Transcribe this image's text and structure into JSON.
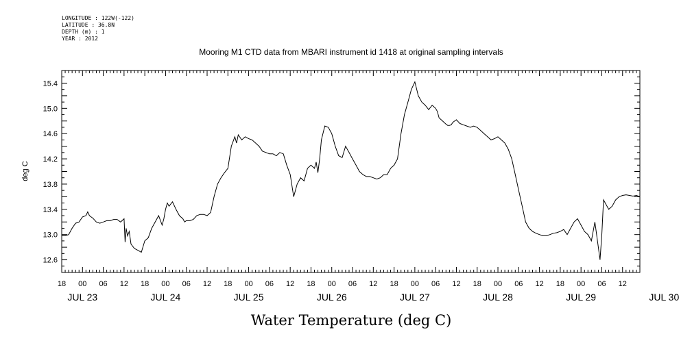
{
  "metadata": {
    "longitude": "LONGITUDE : 122W(-122)",
    "latitude": "LATITUDE : 36.8N",
    "depth": "DEPTH (m) : 1",
    "year": "YEAR : 2012"
  },
  "chart_data": {
    "type": "line",
    "title": "Mooring M1 CTD data from MBARI instrument id 1418 at original sampling intervals",
    "xlabel": "Water Temperature (deg C)",
    "ylabel": "deg C",
    "ylim": [
      12.4,
      15.6
    ],
    "yticks": [
      "12.6",
      "13.0",
      "13.4",
      "13.8",
      "14.2",
      "14.6",
      "15.0",
      "15.4"
    ],
    "xlim_hours": [
      0,
      167
    ],
    "x_hour_ticks": [
      "18",
      "00",
      "06",
      "12",
      "18",
      "00",
      "06",
      "12",
      "18",
      "00",
      "06",
      "12",
      "18",
      "00",
      "06",
      "12",
      "18",
      "00",
      "06",
      "12",
      "18",
      "00",
      "06",
      "12",
      "18",
      "00",
      "06",
      "12"
    ],
    "day_labels": [
      "JUL 23",
      "JUL 24",
      "JUL 25",
      "JUL 26",
      "JUL 27",
      "JUL 28",
      "JUL 29",
      "JUL 30"
    ],
    "series": [
      {
        "x": [
          0,
          1,
          2,
          3,
          4,
          5,
          6,
          7,
          7.5,
          8,
          9,
          10,
          11,
          12,
          13,
          14,
          15,
          16,
          17,
          18,
          18.3,
          18.6,
          19,
          19.5,
          20,
          21,
          22,
          23,
          24,
          25,
          26,
          27,
          28,
          29,
          29.5,
          30,
          30.5,
          31,
          32,
          33,
          34,
          35,
          35.5,
          36,
          37,
          38,
          39,
          40,
          41,
          42,
          43,
          44,
          45,
          46,
          47,
          48,
          49,
          50,
          50.5,
          51,
          52,
          53,
          54,
          55,
          56,
          57,
          58,
          59,
          60,
          61,
          62,
          63,
          64,
          65,
          66,
          67,
          68,
          69,
          70,
          71,
          72,
          73,
          73.5,
          74,
          74.5,
          75,
          76,
          77,
          78,
          79,
          80,
          81,
          82,
          83,
          84,
          85,
          86,
          87,
          88,
          89,
          90,
          91,
          92,
          93,
          94,
          95,
          96,
          97,
          98,
          99,
          100,
          101,
          102,
          103,
          104,
          105,
          106,
          107,
          108,
          108.5,
          109,
          110,
          111,
          111.5,
          112,
          112.5,
          113,
          114,
          115,
          116,
          117,
          118,
          119,
          120,
          121,
          122,
          123,
          124,
          125,
          126,
          127,
          128,
          129,
          130,
          131,
          132,
          133,
          134,
          135,
          136,
          137,
          138,
          139,
          140,
          141,
          142,
          143,
          144,
          145,
          146,
          147,
          148,
          149,
          150,
          151,
          152,
          153,
          154,
          155,
          155.5,
          156,
          156.5,
          157,
          158,
          159,
          160,
          161,
          162,
          163,
          164,
          165,
          166,
          167
        ],
        "y": [
          12.98,
          12.98,
          13.0,
          13.1,
          13.18,
          13.2,
          13.28,
          13.3,
          13.36,
          13.3,
          13.26,
          13.2,
          13.18,
          13.2,
          13.22,
          13.22,
          13.24,
          13.24,
          13.2,
          13.25,
          12.88,
          13.1,
          12.98,
          13.05,
          12.85,
          12.78,
          12.75,
          12.72,
          12.9,
          12.95,
          13.1,
          13.2,
          13.3,
          13.15,
          13.25,
          13.4,
          13.5,
          13.45,
          13.52,
          13.4,
          13.3,
          13.25,
          13.2,
          13.22,
          13.22,
          13.24,
          13.3,
          13.32,
          13.32,
          13.3,
          13.35,
          13.6,
          13.8,
          13.9,
          13.98,
          14.05,
          14.4,
          14.55,
          14.45,
          14.58,
          14.5,
          14.55,
          14.52,
          14.5,
          14.45,
          14.4,
          14.32,
          14.3,
          14.28,
          14.28,
          14.25,
          14.3,
          14.28,
          14.1,
          13.95,
          13.6,
          13.8,
          13.9,
          13.85,
          14.05,
          14.1,
          14.05,
          14.15,
          13.98,
          14.2,
          14.5,
          14.72,
          14.7,
          14.6,
          14.4,
          14.25,
          14.22,
          14.4,
          14.3,
          14.2,
          14.1,
          14.0,
          13.95,
          13.92,
          13.92,
          13.9,
          13.88,
          13.9,
          13.95,
          13.95,
          14.05,
          14.1,
          14.2,
          14.6,
          14.9,
          15.1,
          15.3,
          15.42,
          15.2,
          15.1,
          15.05,
          14.98,
          15.05,
          15.0,
          14.95,
          14.85,
          14.8,
          14.75,
          14.73,
          14.73,
          14.74,
          14.78,
          14.82,
          14.76,
          14.74,
          14.72,
          14.7,
          14.72,
          14.7,
          14.65,
          14.6,
          14.55,
          14.5,
          14.52,
          14.55,
          14.5,
          14.45,
          14.35,
          14.2,
          13.95,
          13.7,
          13.45,
          13.2,
          13.1,
          13.05,
          13.02,
          13.0,
          12.98,
          12.98,
          13.0,
          13.02,
          13.03,
          13.05,
          13.08,
          13.0,
          13.1,
          13.2,
          13.25,
          13.15,
          13.05,
          13.0,
          12.9,
          13.2,
          12.8,
          12.6,
          13.0,
          13.55,
          13.5,
          13.4,
          13.45,
          13.55,
          13.6,
          13.62,
          13.63,
          13.62,
          13.61,
          13.62,
          13.6
        ]
      }
    ]
  }
}
